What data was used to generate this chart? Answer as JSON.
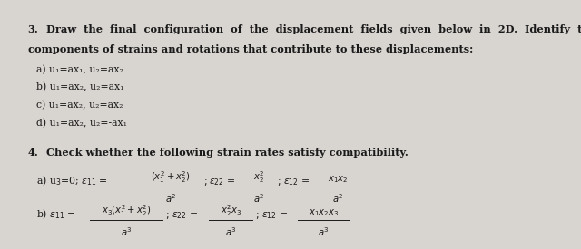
{
  "background_color": "#d8d4d0",
  "text_color": "#1a1a1a",
  "q3_line1_num": "3.",
  "q3_line1_rest": " Draw  the  final  configuration  of  the  displacement  fields  given  below  in  2D.  Identify  the",
  "q3_line2": "components of strains and rotations that contribute to these displacements:",
  "q3a": "a) u₁=ax₁, u₂=ax₂",
  "q3b": "b) u₁=ax₂, u₂=ax₁",
  "q3c": "c) u₁=ax₂, u₂=ax₂",
  "q3d": "d) u₁=ax₂, u₂=-ax₁",
  "q4_line1_num": "4.",
  "q4_line1_rest": " Check whether the following strain rates satisfy compatibility.",
  "q4a_prefix": "a) u₃=0; ε₁₁ =",
  "q4b_prefix": "b) ε₁₁ ="
}
